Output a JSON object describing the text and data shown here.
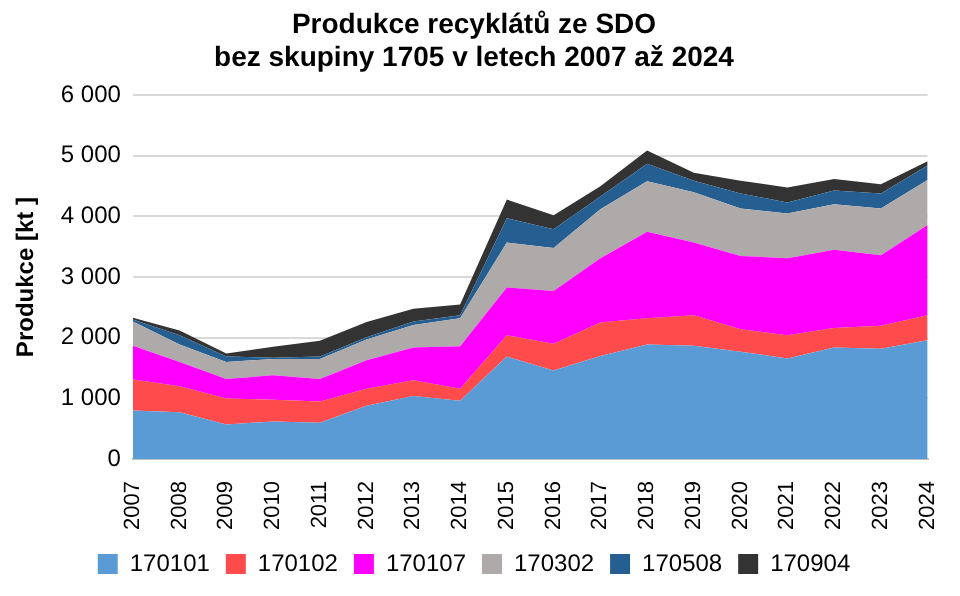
{
  "chart_data": {
    "type": "area",
    "title": "Produkce recyklátů ze SDO",
    "subtitle": "bez skupiny 1705 v letech 2007 až 2024",
    "ylabel": "Produkce [kt ]",
    "categories": [
      "2007",
      "2008",
      "2009",
      "2010",
      "2011",
      "2012",
      "2013",
      "2014",
      "2015",
      "2016",
      "2017",
      "2018",
      "2019",
      "2020",
      "2021",
      "2022",
      "2023",
      "2024"
    ],
    "stacked": true,
    "series": [
      {
        "name": "170101",
        "color": "#5b9bd5",
        "values": [
          800,
          770,
          570,
          620,
          600,
          880,
          1040,
          960,
          1690,
          1460,
          1700,
          1890,
          1870,
          1770,
          1660,
          1840,
          1820,
          1960
        ]
      },
      {
        "name": "170102",
        "color": "#ff4b4b",
        "values": [
          510,
          430,
          430,
          360,
          350,
          280,
          260,
          200,
          350,
          440,
          550,
          430,
          500,
          370,
          380,
          320,
          380,
          410
        ]
      },
      {
        "name": "170107",
        "color": "#ff00ff",
        "values": [
          560,
          400,
          320,
          400,
          370,
          470,
          540,
          700,
          790,
          870,
          1060,
          1430,
          1200,
          1210,
          1270,
          1290,
          1160,
          1490
        ]
      },
      {
        "name": "170302",
        "color": "#aeaaaa",
        "values": [
          400,
          290,
          280,
          270,
          330,
          340,
          370,
          460,
          740,
          710,
          810,
          830,
          830,
          780,
          740,
          750,
          770,
          740
        ]
      },
      {
        "name": "170508",
        "color": "#255e91",
        "values": [
          30,
          150,
          90,
          20,
          40,
          40,
          60,
          50,
          400,
          310,
          210,
          290,
          190,
          250,
          180,
          230,
          250,
          240
        ]
      },
      {
        "name": "170904",
        "color": "#333333",
        "values": [
          30,
          80,
          50,
          180,
          260,
          250,
          210,
          180,
          310,
          230,
          170,
          220,
          130,
          210,
          250,
          190,
          150,
          70
        ]
      }
    ],
    "ylim": [
      0,
      6000
    ],
    "yticks": [
      0,
      {
        "value": 1000,
        "label": "1 000"
      },
      {
        "value": 2000,
        "label": "2 000"
      },
      {
        "value": 3000,
        "label": "3 000"
      },
      {
        "value": 4000,
        "label": "4 000"
      },
      {
        "value": 5000,
        "label": "5 000"
      },
      {
        "value": 6000,
        "label": "6 000"
      }
    ],
    "grid": "y",
    "legend": "bottom"
  }
}
